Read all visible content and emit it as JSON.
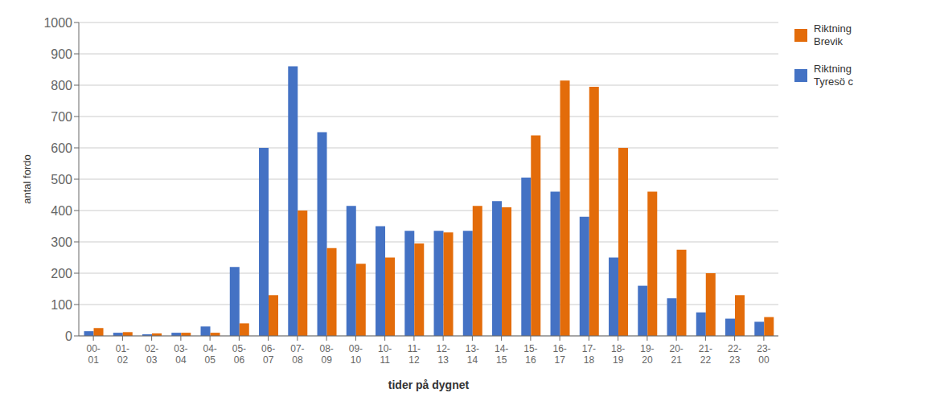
{
  "chart_data": {
    "type": "bar",
    "xlabel": "tider på dygnet",
    "ylabel": "antal fordo",
    "categories": [
      "00-\n01",
      "01-\n02",
      "02-\n03",
      "03-\n04",
      "04-\n05",
      "05-\n06",
      "06-\n07",
      "07-\n08",
      "08-\n09",
      "09-\n10",
      "10-\n11",
      "11-\n12",
      "12-\n13",
      "13-\n14",
      "14-\n15",
      "15-\n16",
      "16-\n17",
      "17-\n18",
      "18-\n19",
      "19-\n20",
      "20-\n21",
      "21-\n22",
      "22-\n23",
      "23-\n00"
    ],
    "series": [
      {
        "name": "Riktning\nTyresö c",
        "color": "#4472C4",
        "values": [
          15,
          10,
          5,
          10,
          30,
          220,
          600,
          860,
          650,
          415,
          350,
          335,
          335,
          335,
          430,
          505,
          460,
          380,
          250,
          160,
          120,
          75,
          55,
          45
        ]
      },
      {
        "name": "Riktning\nBrevik",
        "color": "#E36C0A",
        "values": [
          25,
          12,
          8,
          10,
          10,
          40,
          130,
          400,
          280,
          230,
          250,
          295,
          330,
          415,
          410,
          640,
          815,
          795,
          600,
          460,
          275,
          200,
          130,
          60
        ]
      }
    ],
    "ylim": [
      0,
      1000
    ],
    "yticks": [
      0,
      100,
      200,
      300,
      400,
      500,
      600,
      700,
      800,
      900,
      1000
    ],
    "grid": true,
    "legend": "right"
  }
}
